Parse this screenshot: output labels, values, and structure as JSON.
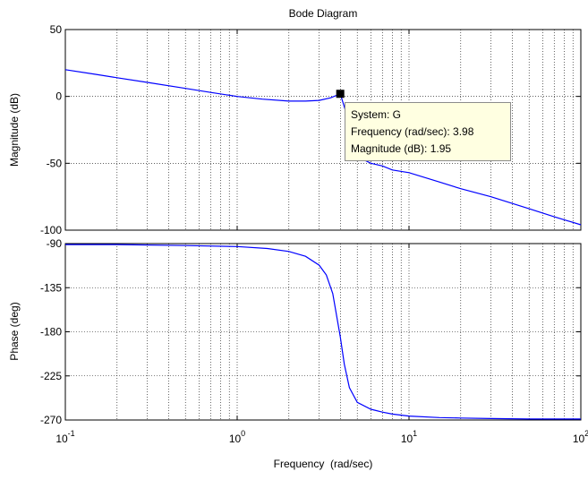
{
  "chart_data": [
    {
      "type": "line",
      "title": "Bode Diagram",
      "ylabel": "Magnitude (dB)",
      "xlabel": "",
      "xscale": "log",
      "xlim": [
        0.1,
        100
      ],
      "ylim": [
        -100,
        50
      ],
      "yticks": [
        "50",
        "0",
        "-50",
        "-100"
      ],
      "grid": true,
      "color": "#0000ff",
      "series": [
        {
          "x": [
            0.1,
            0.15,
            0.2,
            0.3,
            0.5,
            0.7,
            1.0,
            1.4,
            2.0,
            2.5,
            3.0,
            3.5,
            3.98,
            4.5,
            5.0,
            6.0,
            7.0,
            8.0,
            10,
            15,
            20,
            30,
            50,
            70,
            100
          ],
          "y": [
            20,
            16.5,
            14,
            10.5,
            6,
            3,
            0,
            -2,
            -3.5,
            -3.5,
            -3,
            -1,
            1.95,
            -20,
            -45,
            -50,
            -52,
            -55,
            -57,
            -64,
            -69,
            -75,
            -84,
            -90,
            -96
          ]
        }
      ],
      "datatip": {
        "x": 3.98,
        "y": 1.95,
        "lines": [
          "System: G",
          "Frequency (rad/sec): 3.98",
          "Magnitude (dB): 1.95"
        ]
      }
    },
    {
      "type": "line",
      "title": "",
      "ylabel": "Phase (deg)",
      "xlabel": "Frequency  (rad/sec)",
      "xscale": "log",
      "xlim": [
        0.1,
        100
      ],
      "ylim": [
        -270,
        -90
      ],
      "yticks": [
        "-90",
        "-135",
        "-180",
        "-225",
        "-270"
      ],
      "xticks": [
        {
          "base": "10",
          "exp": "-1"
        },
        {
          "base": "10",
          "exp": "0"
        },
        {
          "base": "10",
          "exp": "1"
        },
        {
          "base": "10",
          "exp": "2"
        }
      ],
      "grid": true,
      "color": "#0000ff",
      "series": [
        {
          "x": [
            0.1,
            0.2,
            0.5,
            1.0,
            1.5,
            2.0,
            2.5,
            3.0,
            3.3,
            3.6,
            3.98,
            4.2,
            4.5,
            5.0,
            6.0,
            7.0,
            8.0,
            10,
            15,
            20,
            30,
            50,
            70,
            100
          ],
          "y": [
            -91,
            -91,
            -92,
            -93,
            -95,
            -98,
            -103,
            -112,
            -122,
            -141,
            -185,
            -213,
            -237,
            -252,
            -259,
            -262,
            -264,
            -266,
            -267.5,
            -268,
            -268.5,
            -269,
            -269,
            -269
          ]
        }
      ]
    }
  ]
}
